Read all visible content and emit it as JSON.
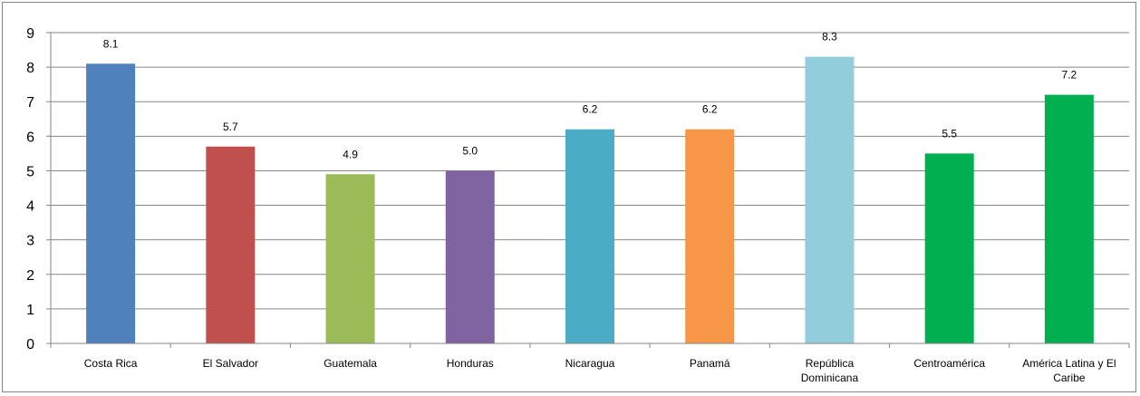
{
  "chart_data": {
    "type": "bar",
    "categories": [
      [
        "Costa Rica"
      ],
      [
        "El Salvador"
      ],
      [
        "Guatemala"
      ],
      [
        "Honduras"
      ],
      [
        "Nicaragua"
      ],
      [
        "Panamá"
      ],
      [
        "República",
        "Dominicana"
      ],
      [
        "Centroamérica"
      ],
      [
        "América Latina y El",
        "Caribe"
      ]
    ],
    "values": [
      8.1,
      5.7,
      4.9,
      5.0,
      6.2,
      6.2,
      8.3,
      5.5,
      7.2
    ],
    "data_labels": [
      "8.1",
      "5.7",
      "4.9",
      "5.0",
      "6.2",
      "6.2",
      "8.3",
      "5.5",
      "7.2"
    ],
    "colors": [
      "#4F81BD",
      "#C0504D",
      "#9BBB59",
      "#8064A2",
      "#4BACC6",
      "#F79646",
      "#92CDDC",
      "#00B050",
      "#00B050"
    ],
    "ylim": [
      0,
      9
    ],
    "yticks": [
      0,
      1,
      2,
      3,
      4,
      5,
      6,
      7,
      8,
      9
    ],
    "grid": true,
    "legend": "none",
    "title": "",
    "xlabel": "",
    "ylabel": ""
  }
}
